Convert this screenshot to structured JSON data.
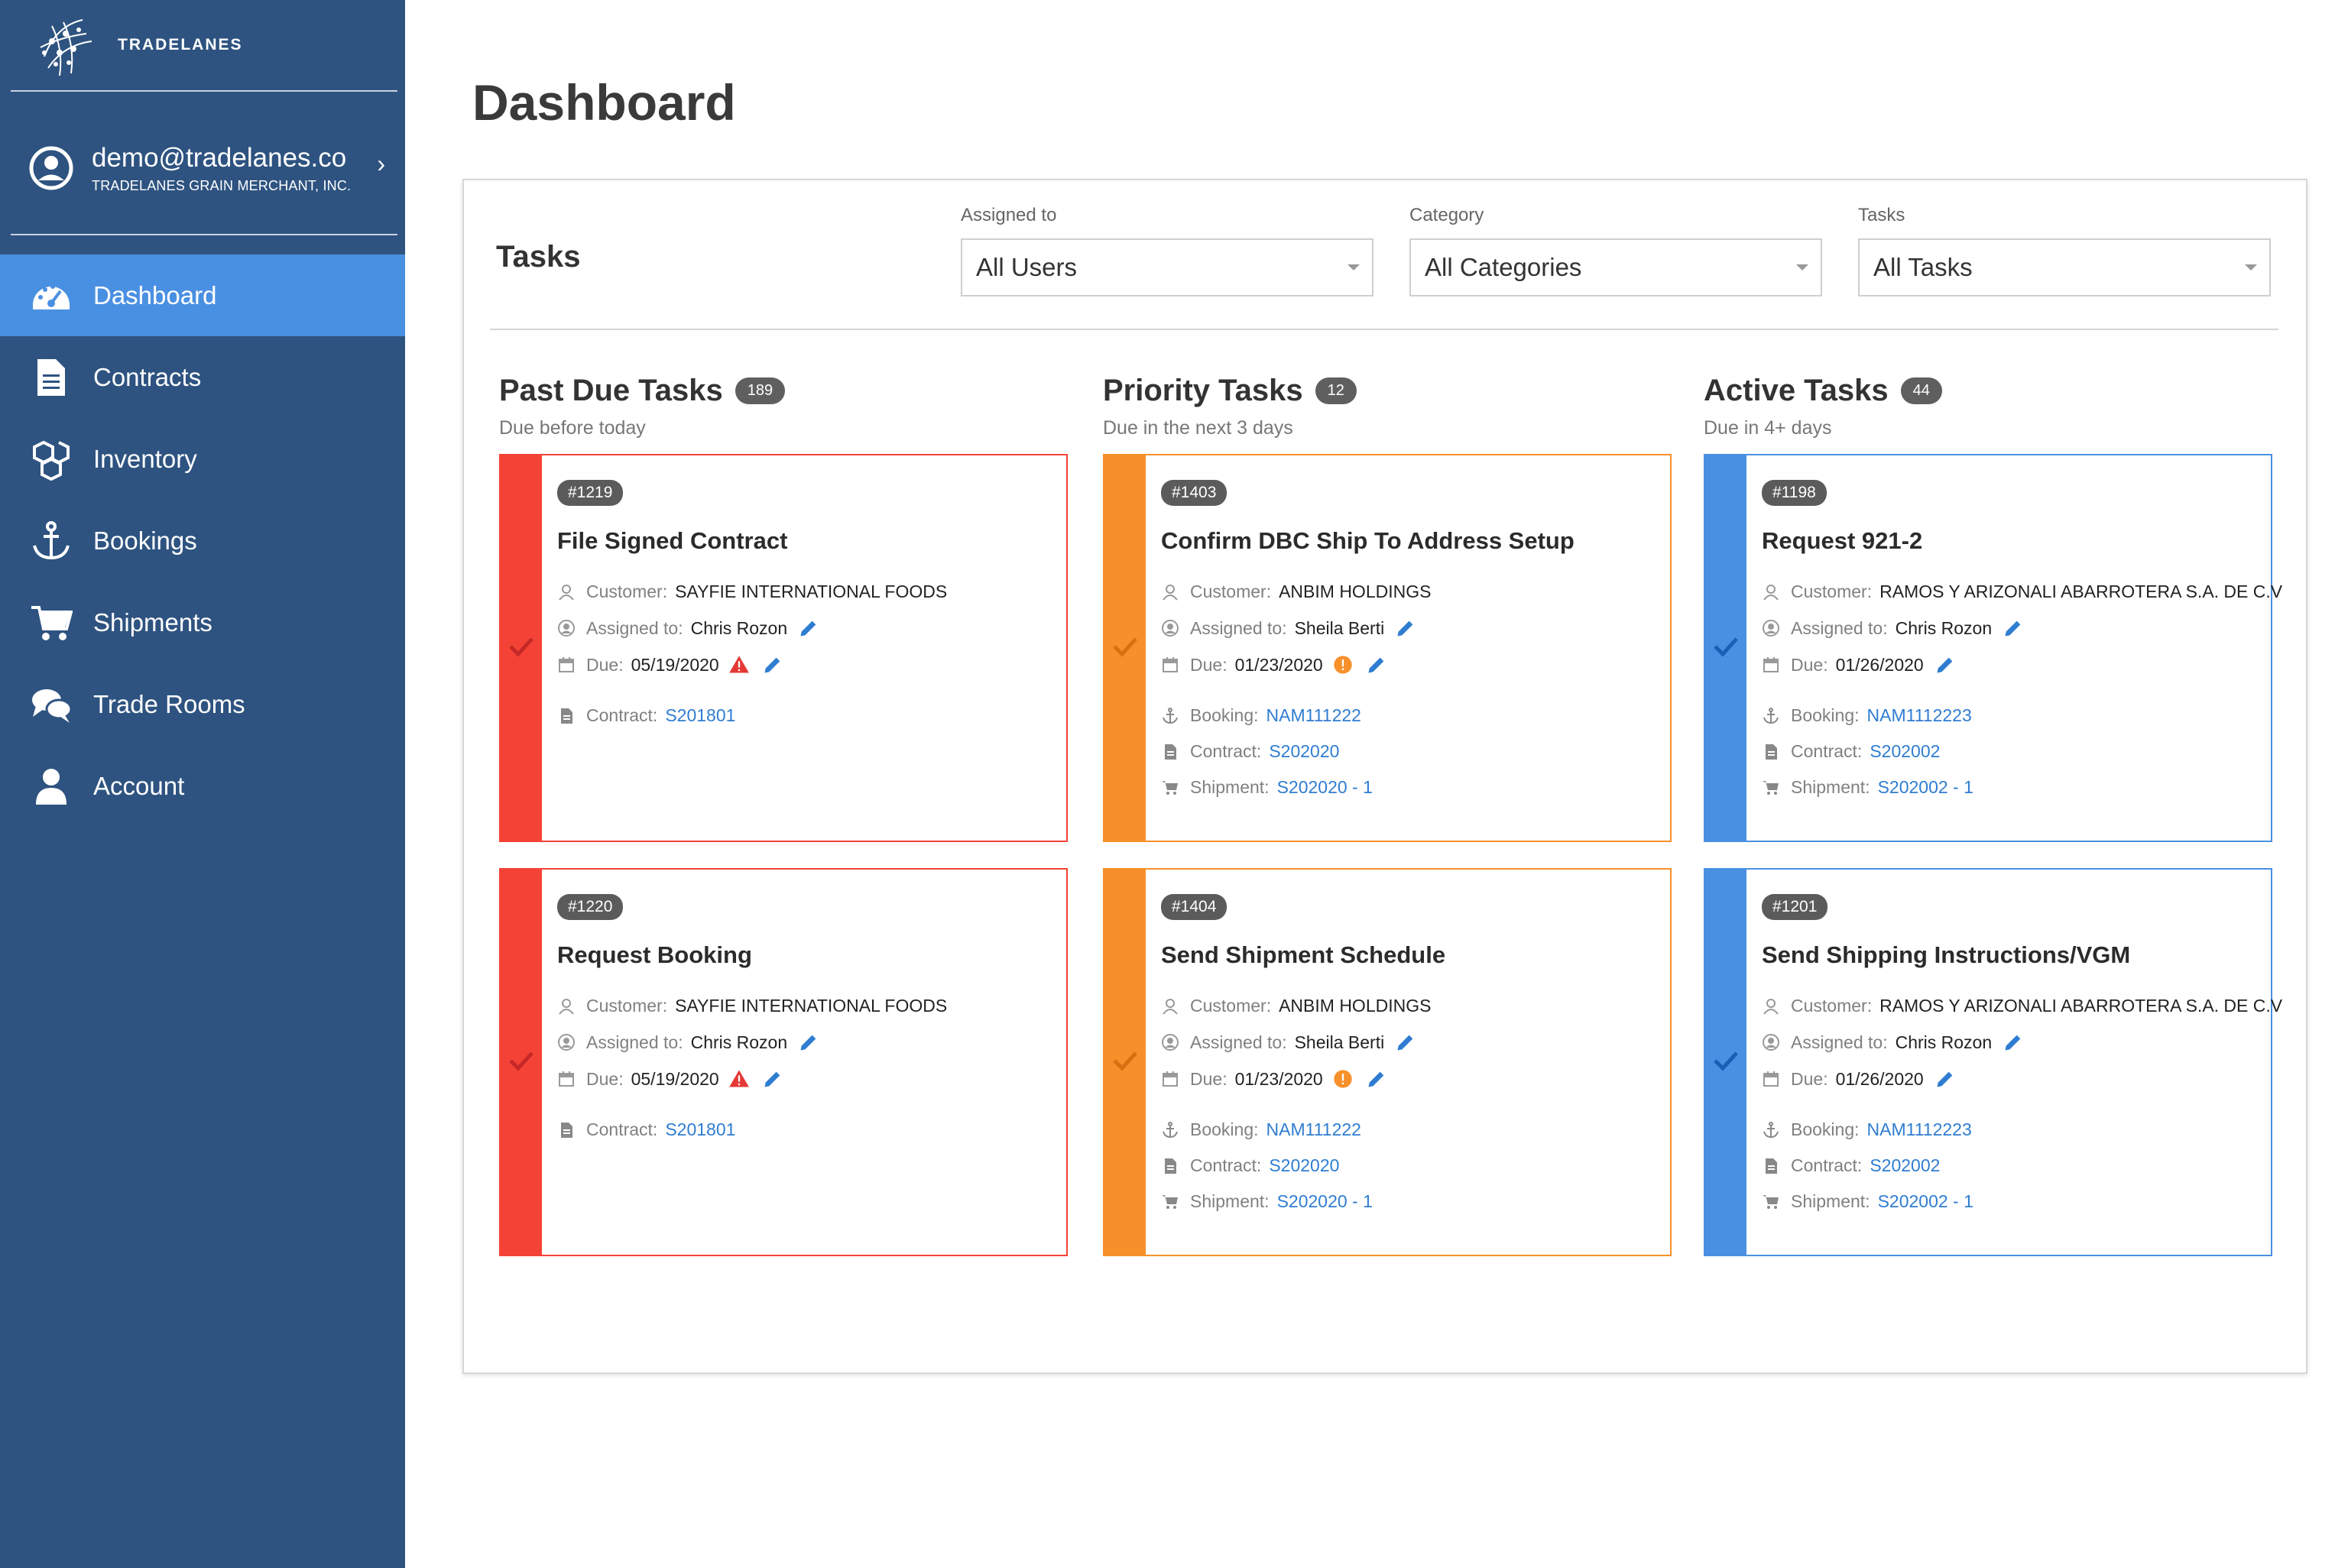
{
  "brand": {
    "name": "TRADELANES"
  },
  "user": {
    "email": "demo@tradelanes.co",
    "company": "TRADELANES GRAIN MERCHANT, INC."
  },
  "nav": [
    {
      "label": "Dashboard",
      "icon": "dashboard-gauge-icon",
      "active": true
    },
    {
      "label": "Contracts",
      "icon": "document-icon"
    },
    {
      "label": "Inventory",
      "icon": "boxes-icon"
    },
    {
      "label": "Bookings",
      "icon": "anchor-icon"
    },
    {
      "label": "Shipments",
      "icon": "cart-icon"
    },
    {
      "label": "Trade Rooms",
      "icon": "chat-bubbles-icon"
    },
    {
      "label": "Account",
      "icon": "user-icon"
    }
  ],
  "page": {
    "title": "Dashboard"
  },
  "panel": {
    "title": "Tasks",
    "filters": [
      {
        "label": "Assigned to",
        "value": "All Users"
      },
      {
        "label": "Category",
        "value": "All Categories"
      },
      {
        "label": "Tasks",
        "value": "All Tasks"
      }
    ]
  },
  "labels": {
    "customer": "Customer:",
    "assigned": "Assigned to:",
    "due": "Due:",
    "booking": "Booking:",
    "contract": "Contract:",
    "shipment": "Shipment:"
  },
  "colors": {
    "past_due": "#f44336",
    "priority": "#f7902b",
    "active": "#4a90e2",
    "link": "#2f7dd1",
    "sidebar": "#2e5380"
  },
  "columns": [
    {
      "title": "Past Due Tasks",
      "count": "189",
      "subtitle": "Due before today",
      "cards": [
        {
          "id": "#1219",
          "title": "File Signed Contract",
          "customer": "SAYFIE INTERNATIONAL FOODS",
          "assigned": "Chris Rozon",
          "due": "05/19/2020",
          "contract": "S201801"
        },
        {
          "id": "#1220",
          "title": "Request Booking",
          "customer": "SAYFIE INTERNATIONAL FOODS",
          "assigned": "Chris Rozon",
          "due": "05/19/2020",
          "contract": "S201801"
        }
      ]
    },
    {
      "title": "Priority Tasks",
      "count": "12",
      "subtitle": "Due in the next 3 days",
      "cards": [
        {
          "id": "#1403",
          "title": "Confirm DBC Ship To Address Setup",
          "customer": "ANBIM HOLDINGS",
          "assigned": "Sheila Berti",
          "due": "01/23/2020",
          "booking": "NAM111222",
          "contract": "S202020",
          "shipment": "S202020 - 1"
        },
        {
          "id": "#1404",
          "title": "Send Shipment Schedule",
          "customer": "ANBIM HOLDINGS",
          "assigned": "Sheila Berti",
          "due": "01/23/2020",
          "booking": "NAM111222",
          "contract": "S202020",
          "shipment": "S202020 - 1"
        }
      ]
    },
    {
      "title": "Active Tasks",
      "count": "44",
      "subtitle": "Due in 4+ days",
      "cards": [
        {
          "id": "#1198",
          "title": "Request 921-2",
          "customer": "RAMOS Y ARIZONALI ABARROTERA S.A. DE C.V",
          "assigned": "Chris Rozon",
          "due": "01/26/2020",
          "booking": "NAM1112223",
          "contract": "S202002",
          "shipment": "S202002 - 1"
        },
        {
          "id": "#1201",
          "title": "Send Shipping Instructions/VGM",
          "customer": "RAMOS Y ARIZONALI ABARROTERA S.A. DE C.V",
          "assigned": "Chris Rozon",
          "due": "01/26/2020",
          "booking": "NAM1112223",
          "contract": "S202002",
          "shipment": "S202002 - 1"
        }
      ]
    }
  ]
}
